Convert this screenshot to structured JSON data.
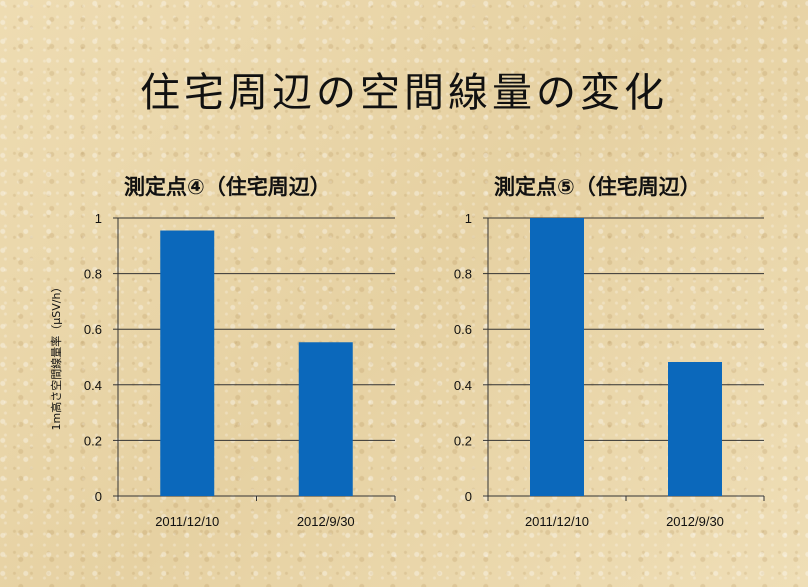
{
  "title": "住宅周辺の空間線量の変化",
  "colors": {
    "bar": "#0b68bb",
    "grid": "#333333"
  },
  "chart_data": [
    {
      "type": "bar",
      "title": "測定点④（住宅周辺）",
      "categories": [
        "2011/12/10",
        "2012/9/30"
      ],
      "values": [
        0.955,
        0.553
      ],
      "ylabel": "1m高さ空間線量率（μSV/h）",
      "ylim": [
        0,
        1
      ],
      "yticks": [
        "0",
        "0.2",
        "0.4",
        "0.6",
        "0.8",
        "1"
      ],
      "grid": true
    },
    {
      "type": "bar",
      "title": "測定点⑤（住宅周辺）",
      "categories": [
        "2011/12/10",
        "2012/9/30"
      ],
      "values": [
        1.0,
        0.482
      ],
      "ylim": [
        0,
        1
      ],
      "yticks": [
        "0",
        "0.2",
        "0.4",
        "0.6",
        "0.8",
        "1"
      ],
      "grid": true
    }
  ]
}
